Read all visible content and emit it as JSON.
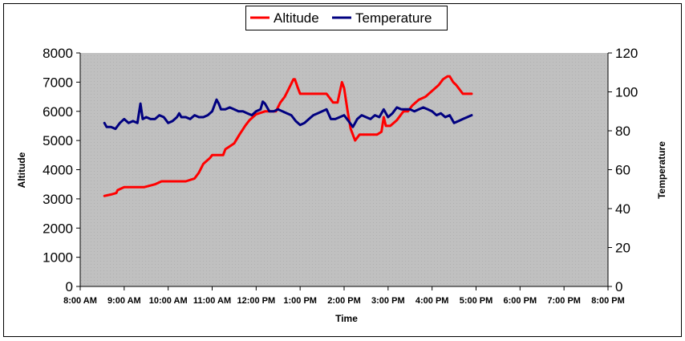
{
  "chart_data": {
    "type": "line",
    "title": "",
    "xlabel": "Time",
    "ylabel": "Altitude",
    "y2label": "Temperature",
    "x_ticks": [
      "8:00 AM",
      "9:00 AM",
      "10:00 AM",
      "11:00 AM",
      "12:00 PM",
      "1:00 PM",
      "2:00 PM",
      "3:00 PM",
      "4:00 PM",
      "5:00 PM",
      "6:00 PM",
      "7:00 PM",
      "8:00 PM"
    ],
    "xlim_hours": [
      8,
      20
    ],
    "ylim": [
      0,
      8000
    ],
    "y_ticks": [
      "0",
      "1000",
      "2000",
      "3000",
      "4000",
      "5000",
      "6000",
      "7000",
      "8000"
    ],
    "y2lim": [
      0,
      120
    ],
    "y2_ticks": [
      "0",
      "20",
      "40",
      "60",
      "80",
      "100",
      "120"
    ],
    "grid": false,
    "legend_position": "top-center",
    "colors": {
      "plot_background": "#c0c0c0",
      "altitude": "#ff0000",
      "temperature": "#000080"
    },
    "series": [
      {
        "name": "Altitude",
        "axis": "left",
        "x_hours": [
          8.55,
          8.7,
          8.82,
          8.85,
          9.0,
          9.2,
          9.45,
          9.7,
          9.85,
          10.05,
          10.25,
          10.4,
          10.6,
          10.7,
          10.8,
          10.95,
          11.0,
          11.25,
          11.3,
          11.5,
          11.62,
          11.75,
          11.85,
          12.0,
          12.2,
          12.3,
          12.45,
          12.55,
          12.65,
          12.75,
          12.85,
          12.88,
          12.95,
          13.0,
          13.3,
          13.6,
          13.75,
          13.85,
          13.95,
          14.0,
          14.08,
          14.15,
          14.25,
          14.35,
          14.45,
          14.6,
          14.75,
          14.85,
          14.9,
          14.95,
          15.05,
          15.2,
          15.35,
          15.45,
          15.55,
          15.7,
          15.85,
          16.0,
          16.15,
          16.25,
          16.35,
          16.4,
          16.48,
          16.55,
          16.6,
          16.7,
          16.8,
          16.9
        ],
        "values": [
          3100,
          3150,
          3200,
          3300,
          3400,
          3400,
          3400,
          3500,
          3600,
          3600,
          3600,
          3600,
          3700,
          3900,
          4200,
          4400,
          4500,
          4500,
          4700,
          4900,
          5200,
          5500,
          5700,
          5900,
          6000,
          6000,
          6000,
          6300,
          6500,
          6800,
          7100,
          7100,
          6800,
          6600,
          6600,
          6600,
          6300,
          6300,
          7000,
          6800,
          6000,
          5400,
          5000,
          5200,
          5200,
          5200,
          5200,
          5300,
          5800,
          5500,
          5500,
          5700,
          6000,
          6000,
          6200,
          6400,
          6500,
          6700,
          6900,
          7100,
          7200,
          7200,
          7000,
          6900,
          6800,
          6600,
          6600,
          6600
        ]
      },
      {
        "name": "Temperature",
        "axis": "right",
        "x_hours": [
          8.55,
          8.6,
          8.7,
          8.8,
          8.9,
          9.0,
          9.1,
          9.2,
          9.3,
          9.37,
          9.42,
          9.5,
          9.6,
          9.7,
          9.8,
          9.9,
          10.0,
          10.1,
          10.2,
          10.25,
          10.3,
          10.4,
          10.5,
          10.6,
          10.7,
          10.8,
          10.9,
          11.0,
          11.1,
          11.15,
          11.2,
          11.3,
          11.4,
          11.5,
          11.6,
          11.7,
          11.8,
          11.9,
          12.0,
          12.1,
          12.15,
          12.2,
          12.3,
          12.4,
          12.5,
          12.6,
          12.7,
          12.8,
          12.9,
          13.0,
          13.1,
          13.2,
          13.3,
          13.4,
          13.5,
          13.6,
          13.7,
          13.8,
          13.9,
          14.0,
          14.1,
          14.2,
          14.3,
          14.4,
          14.5,
          14.6,
          14.7,
          14.8,
          14.9,
          15.0,
          15.1,
          15.2,
          15.3,
          15.4,
          15.5,
          15.6,
          15.7,
          15.8,
          15.9,
          16.0,
          16.1,
          16.2,
          16.3,
          16.4,
          16.5,
          16.6,
          16.7,
          16.8,
          16.9
        ],
        "values": [
          84,
          82,
          82,
          81,
          84,
          86,
          84,
          85,
          84,
          94,
          86,
          87,
          86,
          86,
          88,
          87,
          84,
          85,
          87,
          89,
          87,
          87,
          86,
          88,
          87,
          87,
          88,
          90,
          96,
          94,
          91,
          91,
          92,
          91,
          90,
          90,
          89,
          88,
          90,
          91,
          95,
          94,
          90,
          90,
          91,
          90,
          89,
          88,
          85,
          83,
          84,
          86,
          88,
          89,
          90,
          91,
          86,
          86,
          87,
          88,
          85,
          82,
          86,
          88,
          87,
          86,
          88,
          87,
          91,
          87,
          89,
          92,
          91,
          91,
          91,
          90,
          91,
          92,
          91,
          90,
          88,
          89,
          87,
          88,
          84,
          85,
          86,
          87,
          88
        ]
      }
    ]
  }
}
